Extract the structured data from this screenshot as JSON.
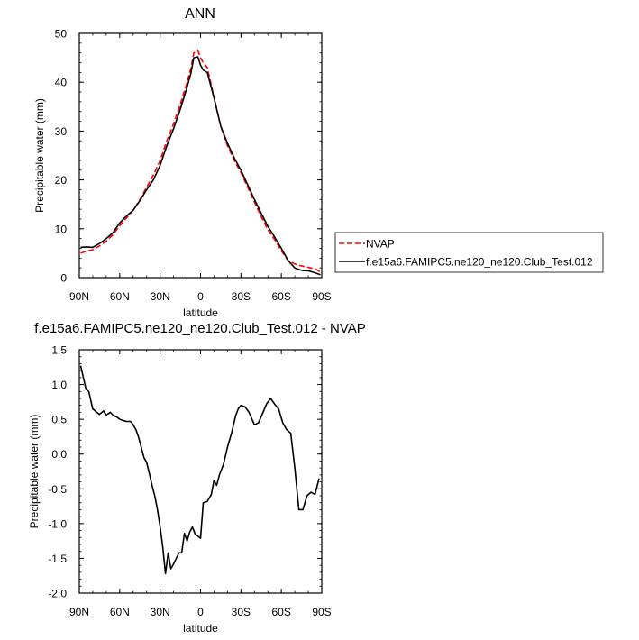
{
  "chart_data": [
    {
      "type": "line",
      "title": "ANN",
      "xlabel": "latitude",
      "ylabel": "Precipitable water (mm)",
      "xlim": [
        90,
        -90
      ],
      "ylim": [
        0,
        50
      ],
      "xticks": [
        90,
        60,
        30,
        0,
        -30,
        -60,
        -90
      ],
      "xticklabels": [
        "90N",
        "60N",
        "30N",
        "0",
        "30S",
        "60S",
        "90S"
      ],
      "yticks": [
        0,
        10,
        20,
        30,
        40,
        50
      ],
      "yticklabels": [
        "0",
        "10",
        "20",
        "30",
        "40",
        "50"
      ],
      "legend": "right",
      "series": [
        {
          "name": "NVAP",
          "color": "#ff0000",
          "dash": true,
          "x": [
            89,
            85,
            80,
            75,
            70,
            65,
            60,
            55,
            50,
            45,
            40,
            35,
            30,
            25,
            20,
            15,
            10,
            7,
            5,
            2,
            0,
            -2,
            -5,
            -10,
            -15,
            -20,
            -25,
            -30,
            -35,
            -40,
            -45,
            -50,
            -55,
            -60,
            -65,
            -70,
            -75,
            -80,
            -85,
            -89
          ],
          "y": [
            5.0,
            5.4,
            5.7,
            6.5,
            7.5,
            8.8,
            10.6,
            12.2,
            13.8,
            16.0,
            18.5,
            21.0,
            24.0,
            28.0,
            31.5,
            35.5,
            40.0,
            43.0,
            46.0,
            46.5,
            45.0,
            44.0,
            43.0,
            37.0,
            31.0,
            27.0,
            24.0,
            21.5,
            18.5,
            15.5,
            12.5,
            9.8,
            7.8,
            5.5,
            3.5,
            2.8,
            2.4,
            2.1,
            1.8,
            1.2
          ]
        },
        {
          "name": "f.e15a6.FAMIPC5.ne120_ne120.Club_Test.012",
          "color": "#000000",
          "dash": false,
          "x": [
            89,
            85,
            80,
            75,
            70,
            65,
            60,
            55,
            50,
            45,
            40,
            35,
            30,
            25,
            20,
            15,
            10,
            7,
            5,
            2,
            0,
            -2,
            -5,
            -10,
            -15,
            -20,
            -25,
            -30,
            -35,
            -40,
            -45,
            -50,
            -55,
            -60,
            -65,
            -70,
            -75,
            -80,
            -85,
            -89
          ],
          "y": [
            6.2,
            6.3,
            6.2,
            7.0,
            8.0,
            9.2,
            11.2,
            12.6,
            13.8,
            15.8,
            18.0,
            20.0,
            23.0,
            27.0,
            30.5,
            34.5,
            39.0,
            42.0,
            45.0,
            45.2,
            43.5,
            42.5,
            42.0,
            36.8,
            31.0,
            27.5,
            24.5,
            22.0,
            19.0,
            16.0,
            13.2,
            10.5,
            8.3,
            6.0,
            3.5,
            2.0,
            1.5,
            1.4,
            1.0,
            0.6
          ]
        }
      ]
    },
    {
      "type": "line",
      "title": "f.e15a6.FAMIPC5.ne120_ne120.Club_Test.012 - NVAP",
      "xlabel": "latitude",
      "ylabel": "Precipitable water (mm)",
      "xlim": [
        90,
        -90
      ],
      "ylim": [
        -2.0,
        1.5
      ],
      "xticks": [
        90,
        60,
        30,
        0,
        -30,
        -60,
        -90
      ],
      "xticklabels": [
        "90N",
        "60N",
        "30N",
        "0",
        "30S",
        "60S",
        "90S"
      ],
      "yticks": [
        -2.0,
        -1.5,
        -1.0,
        -0.5,
        0.0,
        0.5,
        1.0,
        1.5
      ],
      "yticklabels": [
        "-2.0",
        "-1.5",
        "-1.0",
        "-0.5",
        "0.0",
        "0.5",
        "1.0",
        "1.5"
      ],
      "series": [
        {
          "color": "#000000",
          "dash": false,
          "x": [
            89,
            87,
            85,
            83,
            80,
            77,
            75,
            72,
            70,
            67,
            65,
            62,
            60,
            57,
            55,
            52,
            50,
            48,
            46,
            44,
            42,
            40,
            38,
            36,
            34,
            32,
            30,
            28,
            26,
            24,
            22,
            20,
            18,
            16,
            14,
            12,
            10,
            8,
            6,
            4,
            2,
            0,
            -2,
            -5,
            -8,
            -10,
            -12,
            -14,
            -17,
            -20,
            -23,
            -26,
            -28,
            -30,
            -33,
            -36,
            -40,
            -43,
            -46,
            -49,
            -52,
            -55,
            -58,
            -61,
            -64,
            -67,
            -70,
            -73,
            -76,
            -79,
            -82,
            -85,
            -88
          ],
          "y": [
            1.27,
            1.1,
            0.93,
            0.9,
            0.65,
            0.6,
            0.57,
            0.62,
            0.56,
            0.6,
            0.56,
            0.53,
            0.5,
            0.48,
            0.47,
            0.47,
            0.42,
            0.35,
            0.24,
            0.1,
            -0.05,
            -0.12,
            -0.28,
            -0.45,
            -0.6,
            -0.8,
            -1.05,
            -1.35,
            -1.72,
            -1.42,
            -1.65,
            -1.58,
            -1.5,
            -1.42,
            -1.42,
            -1.14,
            -1.25,
            -1.12,
            -1.05,
            -1.15,
            -1.18,
            -1.21,
            -0.7,
            -0.68,
            -0.58,
            -0.38,
            -0.45,
            -0.3,
            -0.15,
            0.1,
            0.3,
            0.55,
            0.65,
            0.7,
            0.68,
            0.6,
            0.42,
            0.45,
            0.58,
            0.72,
            0.8,
            0.72,
            0.65,
            0.45,
            0.35,
            0.3,
            -0.2,
            -0.8,
            -0.8,
            -0.6,
            -0.55,
            -0.58,
            -0.35
          ]
        }
      ]
    }
  ]
}
